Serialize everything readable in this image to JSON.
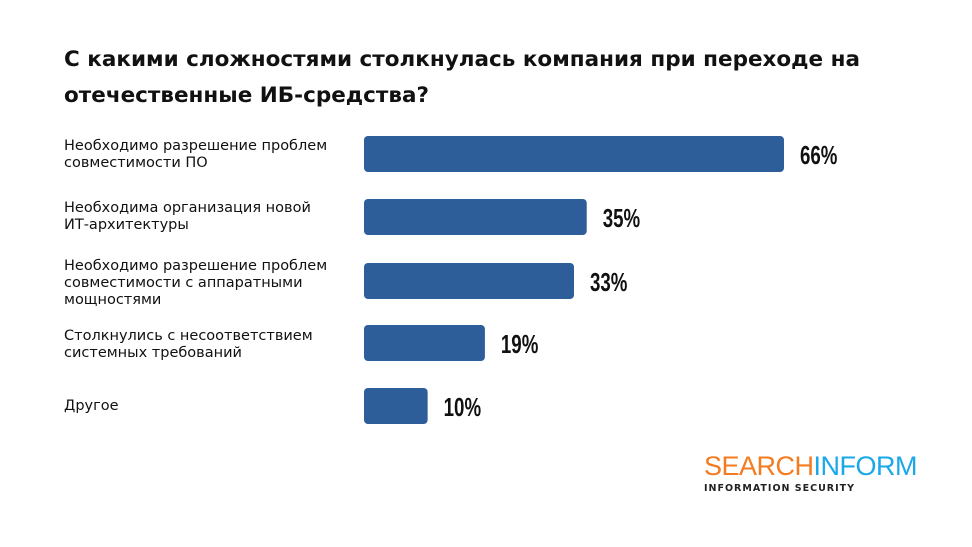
{
  "chart_data": {
    "type": "bar",
    "orientation": "horizontal",
    "title": "С какими сложностями столкнулась компания при переходе на отечественные ИБ-средства?",
    "categories": [
      "Необходимо разрешение проблем совместимости ПО",
      "Необходима организация новой ИТ-архитектуры",
      "Необходимо разрешение проблем совместимости с аппаратными мощностями",
      "Столкнулись с несоответствием системных требований",
      "Другое"
    ],
    "values": [
      66,
      35,
      33,
      19,
      10
    ],
    "data_labels": [
      "66%",
      "35%",
      "33%",
      "19%",
      "10%"
    ],
    "unit": "%",
    "grid": false,
    "bar_color": "#2E5E99"
  },
  "logo": {
    "part1": "SEARCH",
    "part2": "INFORM",
    "tagline": "INFORMATION SECURITY",
    "color1": "#F47B20",
    "color2": "#1BA8E8"
  }
}
